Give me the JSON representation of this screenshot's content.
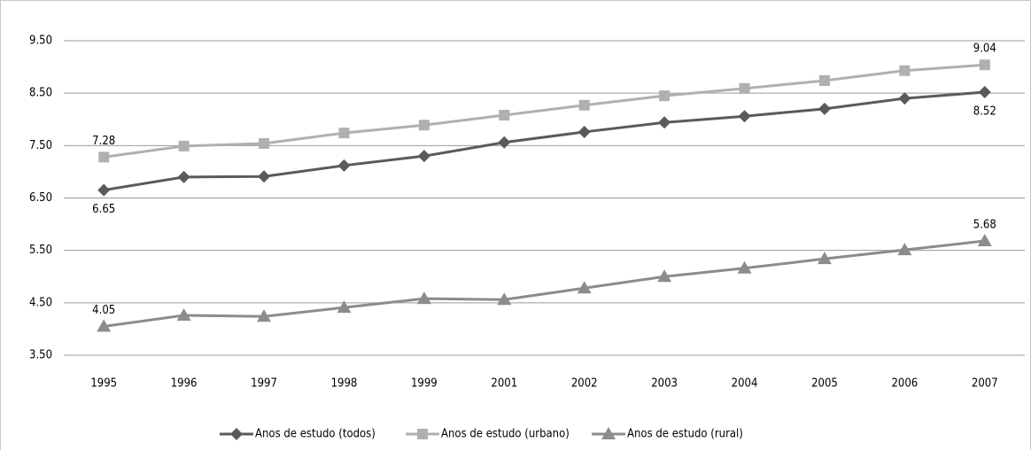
{
  "chart_data": {
    "type": "line",
    "categories": [
      "1995",
      "1996",
      "1997",
      "1998",
      "1999",
      "2001",
      "2002",
      "2003",
      "2004",
      "2005",
      "2006",
      "2007"
    ],
    "series": [
      {
        "name": "Anos de estudo (todos)",
        "color": "#5a5a5a",
        "marker": "diamond",
        "label_position": "below",
        "values": [
          6.65,
          6.9,
          6.91,
          7.12,
          7.3,
          7.56,
          7.76,
          7.94,
          8.06,
          8.2,
          8.4,
          8.52
        ],
        "value_labels": [
          "6.65",
          null,
          null,
          null,
          null,
          null,
          null,
          null,
          null,
          null,
          null,
          "8.52"
        ]
      },
      {
        "name": "Anos de estudo (urbano)",
        "color": "#b0b0b0",
        "marker": "square",
        "label_position": "above",
        "values": [
          7.28,
          7.49,
          7.54,
          7.74,
          7.89,
          8.08,
          8.27,
          8.45,
          8.59,
          8.74,
          8.93,
          9.04
        ],
        "value_labels": [
          "7.28",
          null,
          null,
          null,
          null,
          null,
          null,
          null,
          null,
          null,
          null,
          "9.04"
        ]
      },
      {
        "name": "Anos de estudo (rural)",
        "color": "#8c8c8c",
        "marker": "triangle",
        "label_position": "above",
        "values": [
          4.05,
          4.26,
          4.24,
          4.41,
          4.58,
          4.56,
          4.78,
          5.0,
          5.16,
          5.34,
          5.51,
          5.68
        ],
        "value_labels": [
          "4.05",
          null,
          null,
          null,
          null,
          null,
          null,
          null,
          null,
          null,
          null,
          "5.68"
        ]
      }
    ],
    "ylim": [
      3.5,
      9.5
    ],
    "yticks": [
      {
        "value": 3.5,
        "label": "3.50"
      },
      {
        "value": 4.5,
        "label": "4.50"
      },
      {
        "value": 5.5,
        "label": "5.50"
      },
      {
        "value": 6.5,
        "label": "6.50"
      },
      {
        "value": 7.5,
        "label": "7.50"
      },
      {
        "value": 8.5,
        "label": "8.50"
      },
      {
        "value": 9.5,
        "label": "9.50"
      }
    ],
    "grid": true,
    "legend": "bottom"
  }
}
